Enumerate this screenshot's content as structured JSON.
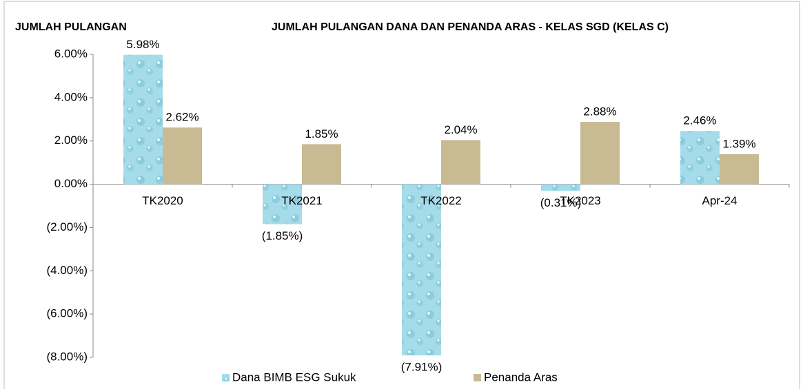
{
  "chart_data": {
    "type": "bar",
    "title": "JUMLAH PULANGAN DANA DAN PENANDA ARAS - KELAS SGD (KELAS C)",
    "y_label": "JUMLAH PULANGAN",
    "categories": [
      "TK2020",
      "TK2021",
      "TK2022",
      "TK2023",
      "Apr-24"
    ],
    "series": [
      {
        "name": "Dana BIMB ESG Sukuk",
        "color": "#9fd8e6",
        "values": [
          5.98,
          -1.85,
          -7.91,
          -0.31,
          2.46
        ],
        "value_labels": [
          "5.98%",
          "(1.85%)",
          "(7.91%)",
          "(0.31%)",
          "2.46%"
        ]
      },
      {
        "name": "Penanda Aras",
        "color": "#c8bb93",
        "values": [
          2.62,
          1.85,
          2.04,
          2.88,
          1.39
        ],
        "value_labels": [
          "2.62%",
          "1.85%",
          "2.04%",
          "2.88%",
          "1.39%"
        ]
      }
    ],
    "ylim": [
      -8,
      6
    ],
    "yticks": [
      {
        "value": 6,
        "label": "6.00%"
      },
      {
        "value": 4,
        "label": "4.00%"
      },
      {
        "value": 2,
        "label": "2.00%"
      },
      {
        "value": 0,
        "label": "0.00%"
      },
      {
        "value": -2,
        "label": "(2.00%)"
      },
      {
        "value": -4,
        "label": "(4.00%)"
      },
      {
        "value": -6,
        "label": "(6.00%)"
      },
      {
        "value": -8,
        "label": "(8.00%)"
      }
    ],
    "grid": false,
    "legend": "bottom"
  }
}
